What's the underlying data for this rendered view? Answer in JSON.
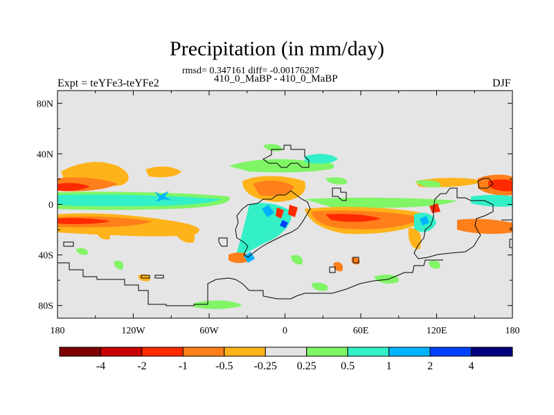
{
  "figure": {
    "title": "Precipitation (in mm/day)",
    "stats": "rmsd= 0.347161 diff= -0.00176287",
    "period": "410_0_MaBP - 410_0_MaBP",
    "experiment": "Expt = teYFe3-teYFe2",
    "season": "DJF"
  },
  "axes": {
    "lat_ticks": [
      "80N",
      "40N",
      "0",
      "40S",
      "80S"
    ],
    "lon_ticks": [
      "180",
      "120W",
      "60W",
      "0",
      "60E",
      "120E",
      "180"
    ]
  },
  "colorbar": {
    "levels": [
      "-4",
      "-2",
      "-1",
      "-0.5",
      "-0.25",
      "0.25",
      "0.5",
      "1",
      "2",
      "4"
    ],
    "colors": [
      "#7d0000",
      "#c80000",
      "#ff2a00",
      "#ff7f1a",
      "#ffb31a",
      "#e5e5e5",
      "#80f566",
      "#33f0c8",
      "#00b3ff",
      "#0040ff",
      "#00007d"
    ]
  },
  "colors": {
    "background_field": "#e5e5e5",
    "coastline": "#000000"
  }
}
